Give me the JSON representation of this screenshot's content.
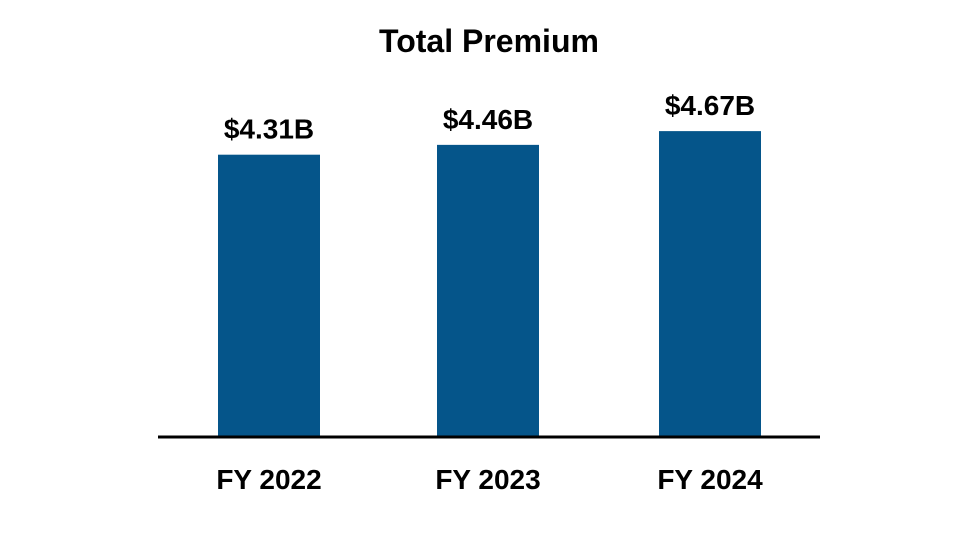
{
  "chart_data": {
    "type": "bar",
    "title": "Total Premium",
    "categories": [
      "FY 2022",
      "FY 2023",
      "FY 2024"
    ],
    "values": [
      4.31,
      4.46,
      4.67
    ],
    "data_labels": [
      "$4.31B",
      "$4.46B",
      "$4.67B"
    ],
    "xlabel": "",
    "ylabel": "",
    "ylim": [
      0,
      5
    ],
    "unit": "$B",
    "grid": false,
    "bar_color": "#05558A",
    "axis_color": "#000000"
  }
}
